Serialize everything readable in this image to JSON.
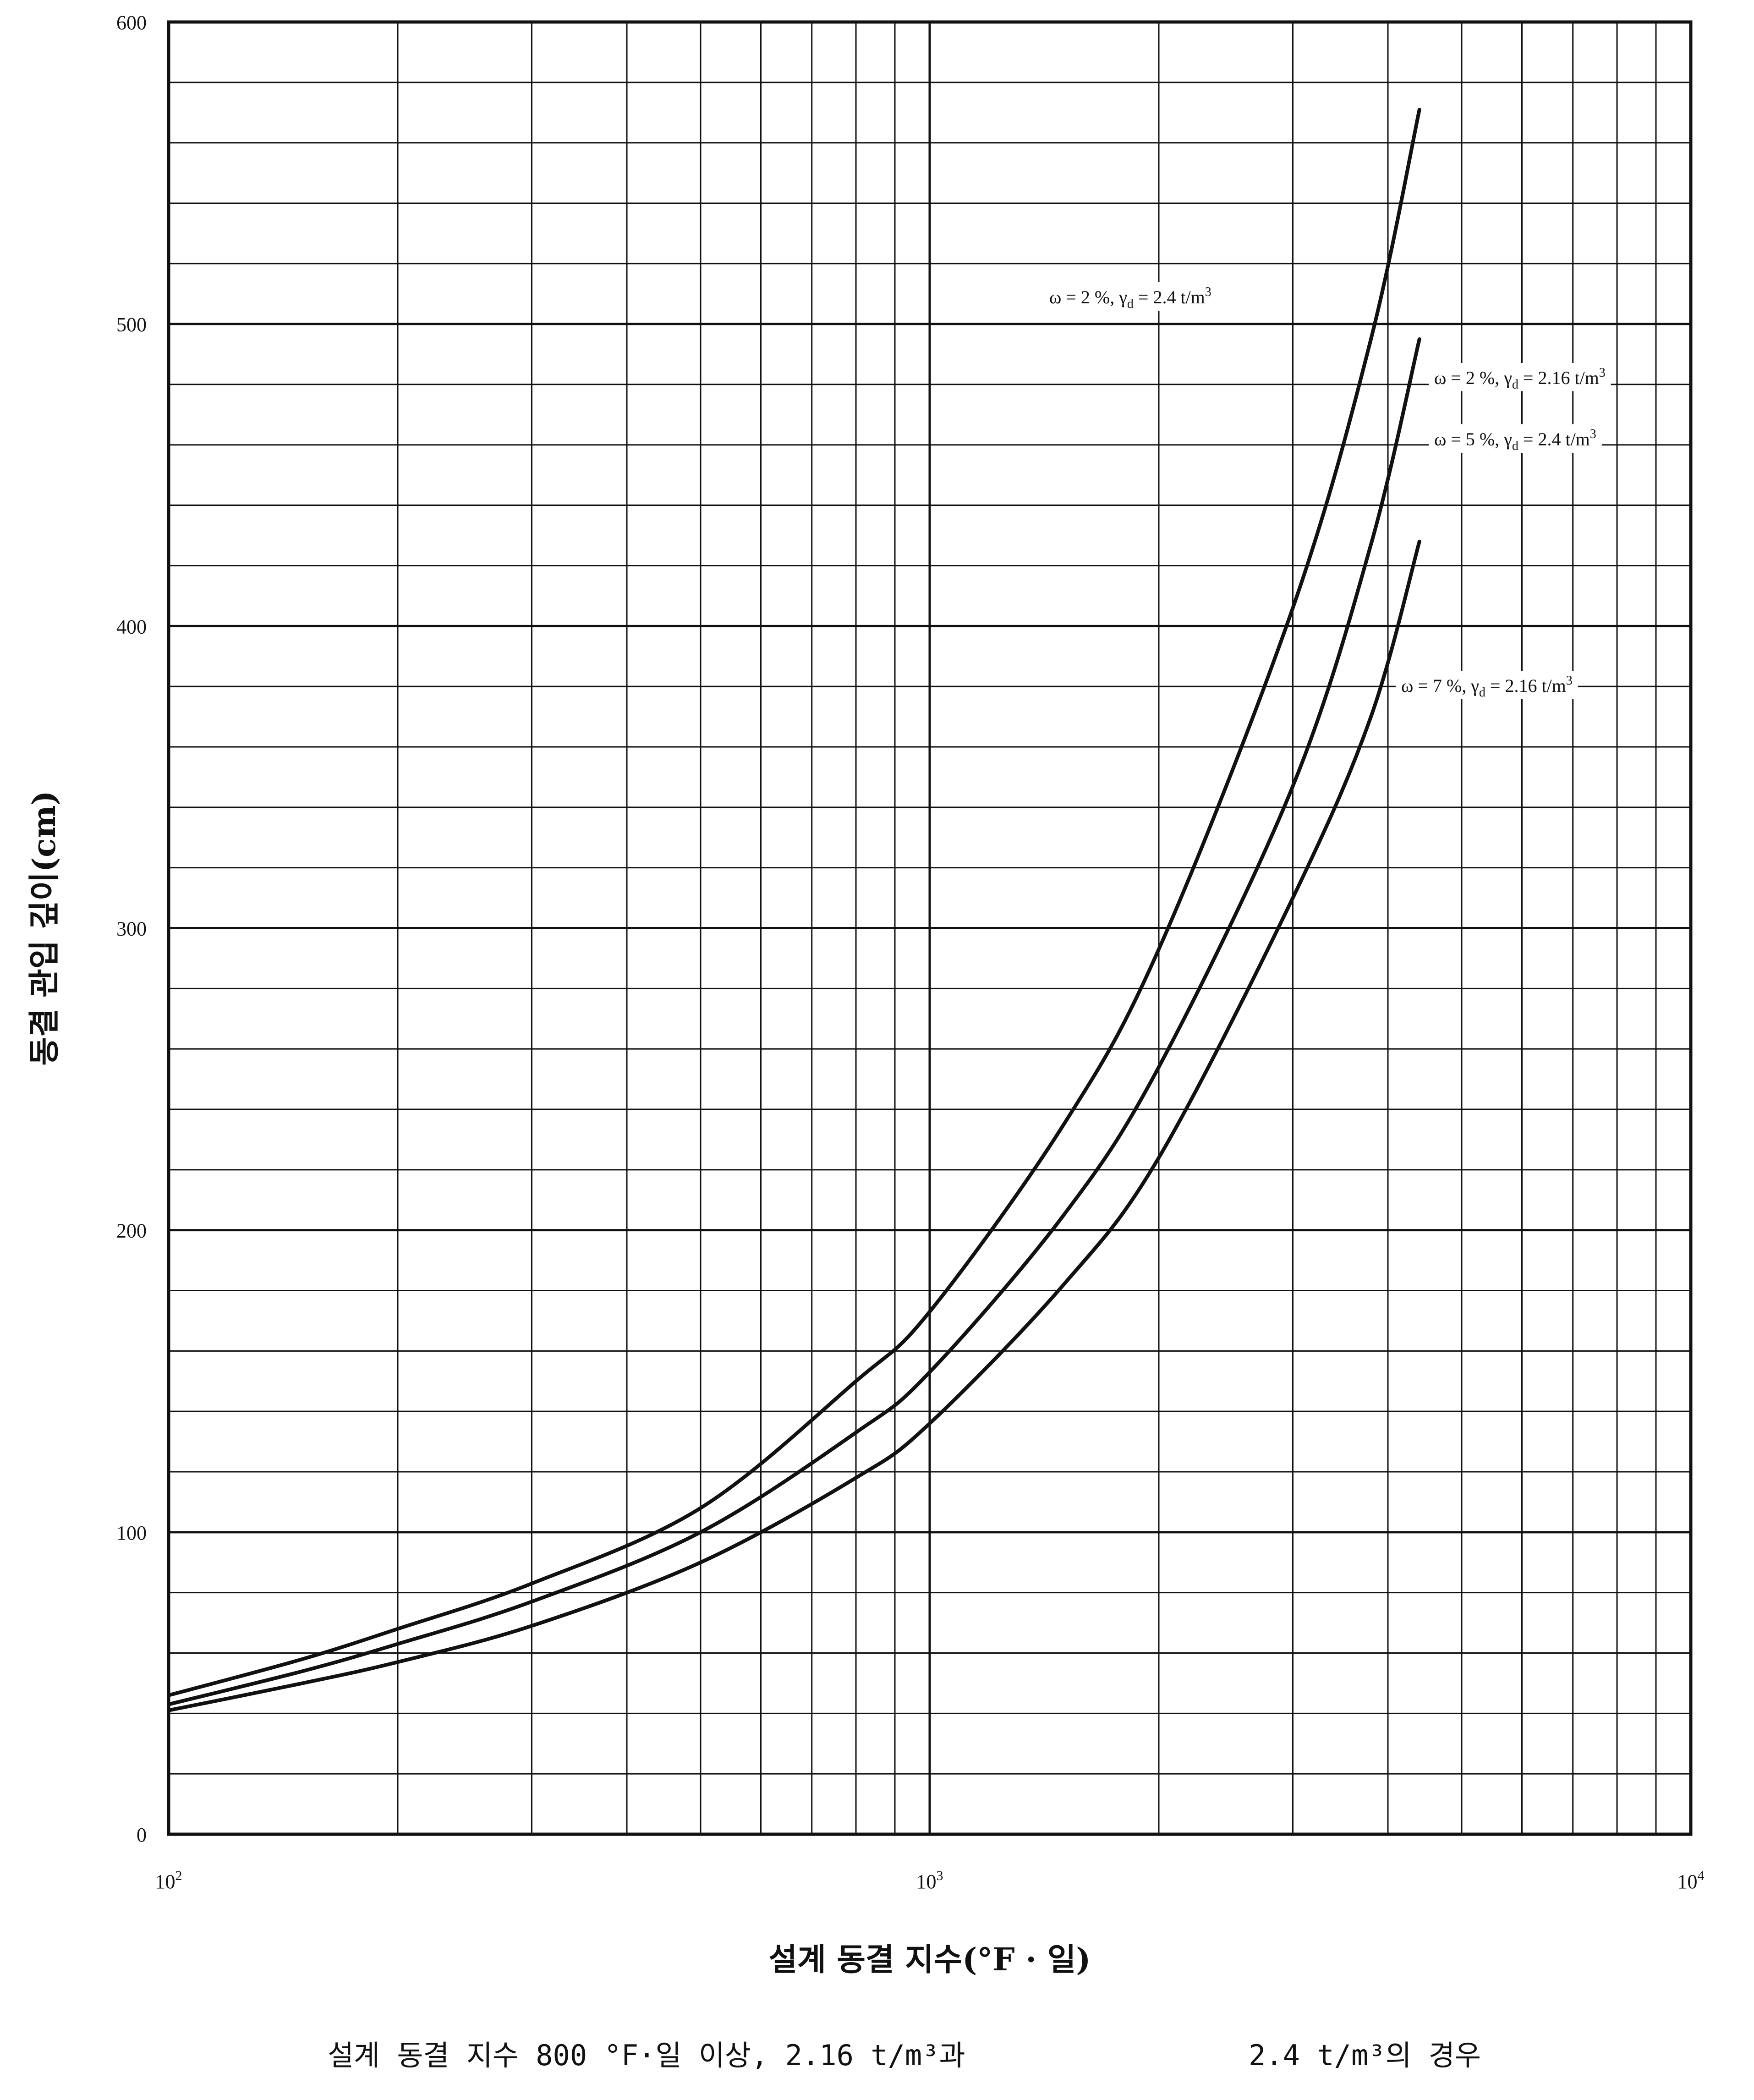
{
  "chart_data": {
    "type": "line",
    "x_scale": "log",
    "y_scale": "linear",
    "xlim": [
      100,
      10000
    ],
    "ylim": [
      0,
      600
    ],
    "grid": true,
    "xlabel": "설계 동결 지수(°F · 일)",
    "ylabel": "동결 관입 깊이(cm)",
    "caption_left": "설계 동결 지수 800 °F·일 이상, 2.16 t/m³과",
    "caption_right": "2.4 t/m³의 경우",
    "y_ticks": [
      "0",
      "100",
      "200",
      "300",
      "400",
      "500",
      "600"
    ],
    "x_ticks": [
      {
        "base": "10",
        "exp": "2",
        "value": 100
      },
      {
        "base": "10",
        "exp": "3",
        "value": 1000
      },
      {
        "base": "10",
        "exp": "4",
        "value": 10000
      }
    ],
    "series": [
      {
        "name": "ω = 2 %,  γd = 2.4 t/m³",
        "x": [
          100,
          150,
          200,
          300,
          500,
          800,
          1000,
          1500,
          2000,
          3000,
          3800,
          4400
        ],
        "y": [
          46,
          58,
          68,
          83,
          108,
          150,
          173,
          235,
          293,
          406,
          495,
          571
        ]
      },
      {
        "name": "ω = 2 %,  γd = 2.16 t/m³",
        "x": [
          100,
          150,
          200,
          300,
          500,
          800,
          1000,
          1500,
          2000,
          3000,
          3800,
          4400
        ],
        "y": [
          43,
          54,
          63,
          77,
          100,
          133,
          153,
          205,
          254,
          347,
          427,
          495
        ]
      },
      {
        "name": "ω = 5 %,  γd = 2.4 t/m³",
        "x": [
          100,
          150,
          200,
          300,
          500,
          800,
          1000,
          1500,
          2000,
          3000,
          3800,
          4400
        ],
        "y": [
          43,
          54,
          63,
          77,
          100,
          133,
          153,
          205,
          254,
          347,
          427,
          495
        ]
      },
      {
        "name": "ω = 7 %,  γd = 2.16 t/m³",
        "x": [
          100,
          150,
          200,
          300,
          500,
          800,
          1000,
          1500,
          2000,
          3000,
          3800,
          4400
        ],
        "y": [
          41,
          50,
          57,
          69,
          90,
          118,
          136,
          182,
          224,
          310,
          370,
          428
        ]
      }
    ],
    "annotations": [
      {
        "text_pre": "ω = 2 %,  γ",
        "sub": "d",
        "text_post": " = 2.4 t/m",
        "sup": "3"
      },
      {
        "text_pre": "ω = 2 %,  γ",
        "sub": "d",
        "text_post": " = 2.16 t/m",
        "sup": "3"
      },
      {
        "text_pre": "ω = 5 %,  γ",
        "sub": "d",
        "text_post": " = 2.4 t/m",
        "sup": "3"
      },
      {
        "text_pre": "ω = 7 %,  γ",
        "sub": "d",
        "text_post": " = 2.16 t/m",
        "sup": "3"
      }
    ]
  }
}
